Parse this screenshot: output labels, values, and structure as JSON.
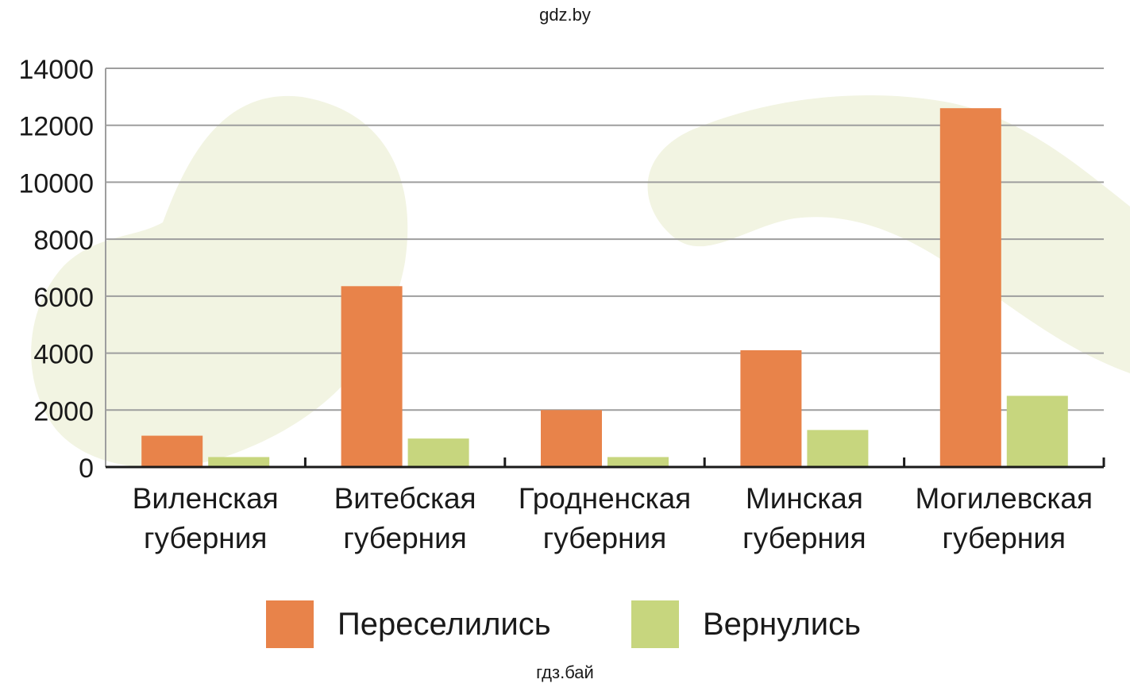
{
  "watermarks": {
    "top": "gdz.by",
    "bottom": "гдз.бай"
  },
  "chart_data": {
    "type": "bar",
    "categories": [
      "Виленская губерния",
      "Витебская губерния",
      "Гродненская губерния",
      "Минская губерния",
      "Могилевская губерния"
    ],
    "series": [
      {
        "name": "Переселились",
        "color": "#e8834a",
        "values": [
          1100,
          6350,
          2000,
          4100,
          12600
        ]
      },
      {
        "name": "Вернулись",
        "color": "#c7d67e",
        "values": [
          350,
          1000,
          350,
          1300,
          2500
        ]
      }
    ],
    "ylim": [
      0,
      14000
    ],
    "yticks": [
      0,
      2000,
      4000,
      6000,
      8000,
      10000,
      12000,
      14000
    ],
    "grid": true,
    "legend_position": "bottom",
    "title": "",
    "xlabel": "",
    "ylabel": ""
  }
}
